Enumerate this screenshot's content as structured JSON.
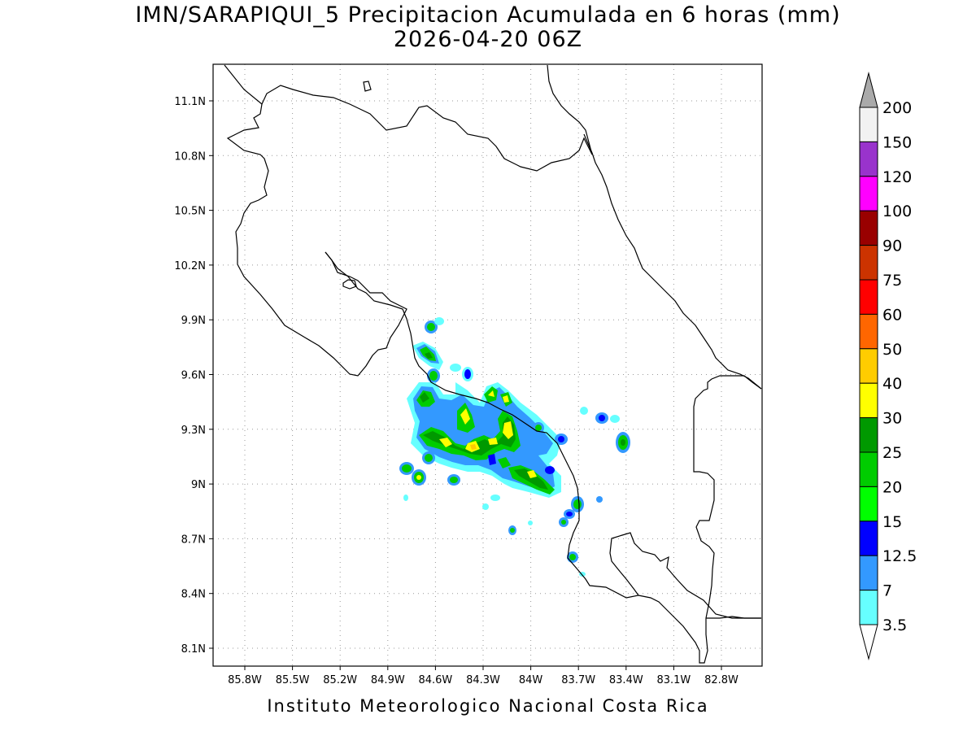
{
  "title": "IMN/SARAPIQUI_5 Precipitacion Acumulada en 6 horas (mm)",
  "subtitle": "2026-04-20 06Z",
  "credit": "Instituto Meteorologico Nacional Costa Rica",
  "lat_labels": [
    "11.1N",
    "10.8N",
    "10.5N",
    "10.2N",
    "9.9N",
    "9.6N",
    "9.3N",
    "9N",
    "8.7N",
    "8.4N",
    "8.1N"
  ],
  "lon_labels": [
    "85.8W",
    "85.5W",
    "85.2W",
    "84.9W",
    "84.6W",
    "84.3W",
    "84W",
    "83.7W",
    "83.4W",
    "83.1W",
    "82.8W"
  ],
  "colorbar": {
    "labels": [
      "200",
      "150",
      "120",
      "100",
      "90",
      "75",
      "60",
      "50",
      "40",
      "30",
      "25",
      "20",
      "15",
      "12.5",
      "7",
      "3.5"
    ],
    "colors": [
      "#f2f2f2",
      "#9933cc",
      "#ff00ff",
      "#990000",
      "#cc3300",
      "#ff0000",
      "#ff6600",
      "#ffcc00",
      "#ffff00",
      "#009900",
      "#00cc00",
      "#00ff00",
      "#0000ff",
      "#3399ff",
      "#66ffff"
    ],
    "over_color": "#aaaaaa",
    "under_color": "#ffffff"
  }
}
